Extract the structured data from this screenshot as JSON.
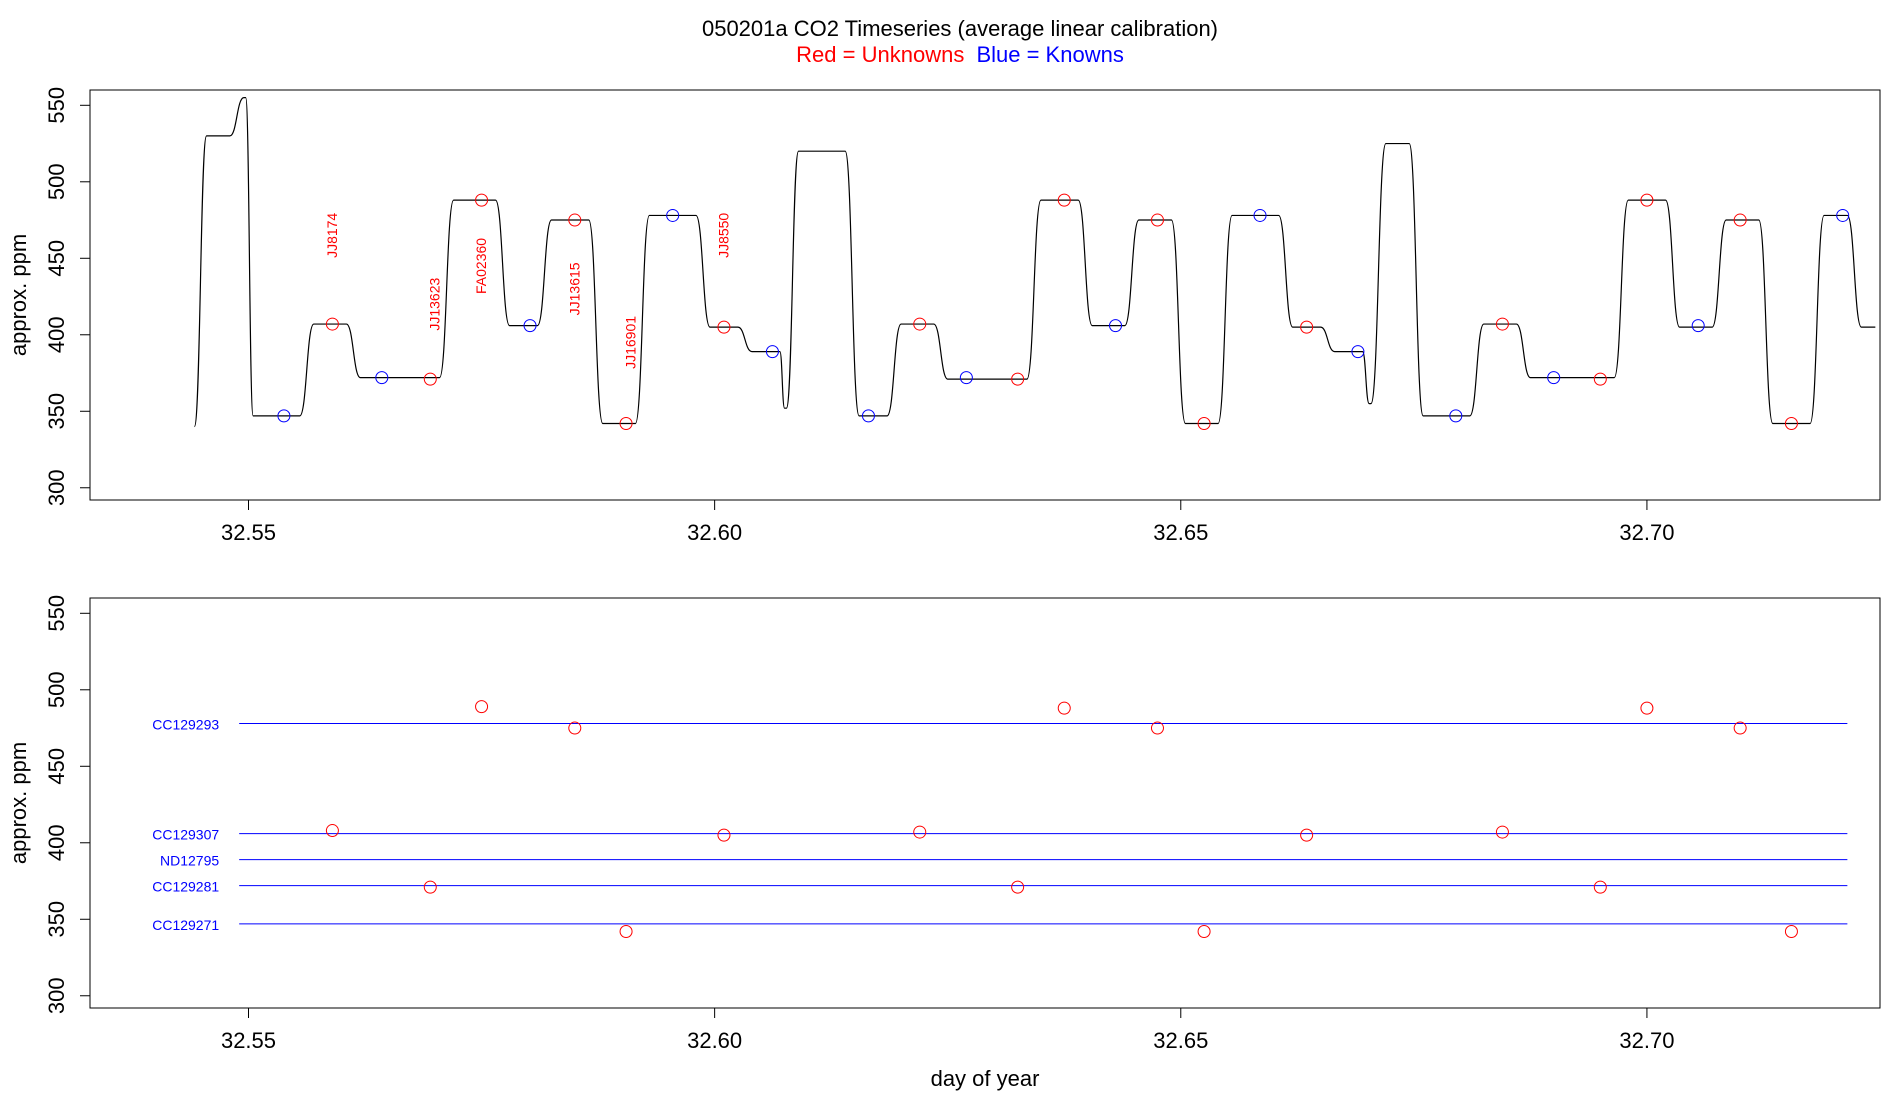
{
  "title": "050201a   CO2 Timeseries (average linear calibration)",
  "subtitle": {
    "red_text": "Red = Unknowns",
    "blue_text": "Blue = Knowns",
    "red_color": "#ff0000",
    "blue_color": "#0000ff"
  },
  "chart_data": [
    {
      "type": "line",
      "panel": "top",
      "xlim": [
        32.533,
        32.725
      ],
      "ylim": [
        292,
        560
      ],
      "x_ticks": [
        32.55,
        32.6,
        32.65,
        32.7
      ],
      "x_tick_labels": [
        "32.55",
        "32.60",
        "32.65",
        "32.70"
      ],
      "y_ticks": [
        300,
        350,
        400,
        450,
        500,
        550
      ],
      "y_tick_labels": [
        "300",
        "350",
        "400",
        "450",
        "500",
        "550"
      ],
      "xlabel": "",
      "ylabel": "approx. ppm",
      "series": [
        {
          "color": "#000000",
          "segments": [
            {
              "level": 340,
              "x0": 32.5442,
              "x1": 32.5442
            },
            {
              "level": 530,
              "x0": 32.5455,
              "x1": 32.548
            },
            {
              "level": 555,
              "x0": 32.5495,
              "x1": 32.5497
            },
            {
              "level": 347,
              "x0": 32.5505,
              "x1": 32.5555
            },
            {
              "level": 407,
              "x0": 32.557,
              "x1": 32.5605
            },
            {
              "level": 372,
              "x0": 32.562,
              "x1": 32.5705
            },
            {
              "level": 488,
              "x0": 32.572,
              "x1": 32.5765
            },
            {
              "level": 406,
              "x0": 32.578,
              "x1": 32.581
            },
            {
              "level": 475,
              "x0": 32.5825,
              "x1": 32.5865
            },
            {
              "level": 342,
              "x0": 32.588,
              "x1": 32.5915
            },
            {
              "level": 478,
              "x0": 32.593,
              "x1": 32.598
            },
            {
              "level": 405,
              "x0": 32.5995,
              "x1": 32.6025
            },
            {
              "level": 389,
              "x0": 32.604,
              "x1": 32.607
            },
            {
              "level": 352,
              "x0": 32.6075,
              "x1": 32.6077
            },
            {
              "level": 520,
              "x0": 32.609,
              "x1": 32.614
            },
            {
              "level": 347,
              "x0": 32.6155,
              "x1": 32.6185
            },
            {
              "level": 407,
              "x0": 32.62,
              "x1": 32.6235
            },
            {
              "level": 371,
              "x0": 32.625,
              "x1": 32.6335
            },
            {
              "level": 488,
              "x0": 32.635,
              "x1": 32.639
            },
            {
              "level": 406,
              "x0": 32.6405,
              "x1": 32.644
            },
            {
              "level": 475,
              "x0": 32.6455,
              "x1": 32.649
            },
            {
              "level": 342,
              "x0": 32.6505,
              "x1": 32.654
            },
            {
              "level": 478,
              "x0": 32.6555,
              "x1": 32.6605
            },
            {
              "level": 405,
              "x0": 32.662,
              "x1": 32.665
            },
            {
              "level": 389,
              "x0": 32.6665,
              "x1": 32.6695
            },
            {
              "level": 355,
              "x0": 32.6702,
              "x1": 32.6704
            },
            {
              "level": 525,
              "x0": 32.672,
              "x1": 32.6745
            },
            {
              "level": 347,
              "x0": 32.676,
              "x1": 32.681
            },
            {
              "level": 407,
              "x0": 32.6825,
              "x1": 32.686
            },
            {
              "level": 372,
              "x0": 32.6875,
              "x1": 32.6965
            },
            {
              "level": 488,
              "x0": 32.698,
              "x1": 32.702
            },
            {
              "level": 405,
              "x0": 32.7035,
              "x1": 32.707
            },
            {
              "level": 475,
              "x0": 32.7085,
              "x1": 32.712
            },
            {
              "level": 342,
              "x0": 32.7135,
              "x1": 32.7175
            },
            {
              "level": 478,
              "x0": 32.719,
              "x1": 32.7215
            },
            {
              "level": 405,
              "x0": 32.723,
              "x1": 32.7245
            }
          ]
        }
      ],
      "unknown_points": [
        {
          "x": 32.559,
          "y": 407
        },
        {
          "x": 32.5695,
          "y": 371
        },
        {
          "x": 32.575,
          "y": 488
        },
        {
          "x": 32.585,
          "y": 475
        },
        {
          "x": 32.5905,
          "y": 342
        },
        {
          "x": 32.601,
          "y": 405
        },
        {
          "x": 32.622,
          "y": 407
        },
        {
          "x": 32.6325,
          "y": 371
        },
        {
          "x": 32.6375,
          "y": 488
        },
        {
          "x": 32.6475,
          "y": 475
        },
        {
          "x": 32.6525,
          "y": 342
        },
        {
          "x": 32.6635,
          "y": 405
        },
        {
          "x": 32.6845,
          "y": 407
        },
        {
          "x": 32.695,
          "y": 371
        },
        {
          "x": 32.7,
          "y": 488
        },
        {
          "x": 32.71,
          "y": 475
        },
        {
          "x": 32.7155,
          "y": 342
        }
      ],
      "known_points": [
        {
          "x": 32.5538,
          "y": 347
        },
        {
          "x": 32.5643,
          "y": 372
        },
        {
          "x": 32.5802,
          "y": 406
        },
        {
          "x": 32.5955,
          "y": 478
        },
        {
          "x": 32.6062,
          "y": 389
        },
        {
          "x": 32.6165,
          "y": 347
        },
        {
          "x": 32.627,
          "y": 372
        },
        {
          "x": 32.643,
          "y": 406
        },
        {
          "x": 32.6585,
          "y": 478
        },
        {
          "x": 32.669,
          "y": 389
        },
        {
          "x": 32.6795,
          "y": 347
        },
        {
          "x": 32.69,
          "y": 372
        },
        {
          "x": 32.7055,
          "y": 406
        },
        {
          "x": 32.721,
          "y": 478
        }
      ],
      "annotations": [
        {
          "text": "JJ8174",
          "x": 32.5595,
          "y": 465
        },
        {
          "text": "JJ13623",
          "x": 32.5705,
          "y": 420
        },
        {
          "text": "FA02360",
          "x": 32.5755,
          "y": 445
        },
        {
          "text": "JJ13615",
          "x": 32.5855,
          "y": 430
        },
        {
          "text": "JJ16901",
          "x": 32.5915,
          "y": 395
        },
        {
          "text": "JJ8550",
          "x": 32.6015,
          "y": 465
        }
      ]
    },
    {
      "type": "scatter",
      "panel": "bottom",
      "xlim": [
        32.533,
        32.725
      ],
      "ylim": [
        292,
        560
      ],
      "x_ticks": [
        32.55,
        32.6,
        32.65,
        32.7
      ],
      "x_tick_labels": [
        "32.55",
        "32.60",
        "32.65",
        "32.70"
      ],
      "y_ticks": [
        300,
        350,
        400,
        450,
        500,
        550
      ],
      "y_tick_labels": [
        "300",
        "350",
        "400",
        "450",
        "500",
        "550"
      ],
      "xlabel": "day of year",
      "ylabel": "approx. ppm",
      "reference_lines": [
        {
          "name": "CC129293",
          "y": 478,
          "x0": 32.549,
          "x1": 32.7215
        },
        {
          "name": "CC129307",
          "y": 406,
          "x0": 32.549,
          "x1": 32.7215
        },
        {
          "name": "ND12795",
          "y": 389,
          "x0": 32.549,
          "x1": 32.7215
        },
        {
          "name": "CC129281",
          "y": 372,
          "x0": 32.549,
          "x1": 32.7215
        },
        {
          "name": "CC129271",
          "y": 347,
          "x0": 32.549,
          "x1": 32.7215
        }
      ],
      "unknown_points": [
        {
          "x": 32.559,
          "y": 408
        },
        {
          "x": 32.5695,
          "y": 371
        },
        {
          "x": 32.575,
          "y": 489
        },
        {
          "x": 32.585,
          "y": 475
        },
        {
          "x": 32.5905,
          "y": 342
        },
        {
          "x": 32.601,
          "y": 405
        },
        {
          "x": 32.622,
          "y": 407
        },
        {
          "x": 32.6325,
          "y": 371
        },
        {
          "x": 32.6375,
          "y": 488
        },
        {
          "x": 32.6475,
          "y": 475
        },
        {
          "x": 32.6525,
          "y": 342
        },
        {
          "x": 32.6635,
          "y": 405
        },
        {
          "x": 32.6845,
          "y": 407
        },
        {
          "x": 32.695,
          "y": 371
        },
        {
          "x": 32.7,
          "y": 488
        },
        {
          "x": 32.71,
          "y": 475
        },
        {
          "x": 32.7155,
          "y": 342
        }
      ]
    }
  ]
}
